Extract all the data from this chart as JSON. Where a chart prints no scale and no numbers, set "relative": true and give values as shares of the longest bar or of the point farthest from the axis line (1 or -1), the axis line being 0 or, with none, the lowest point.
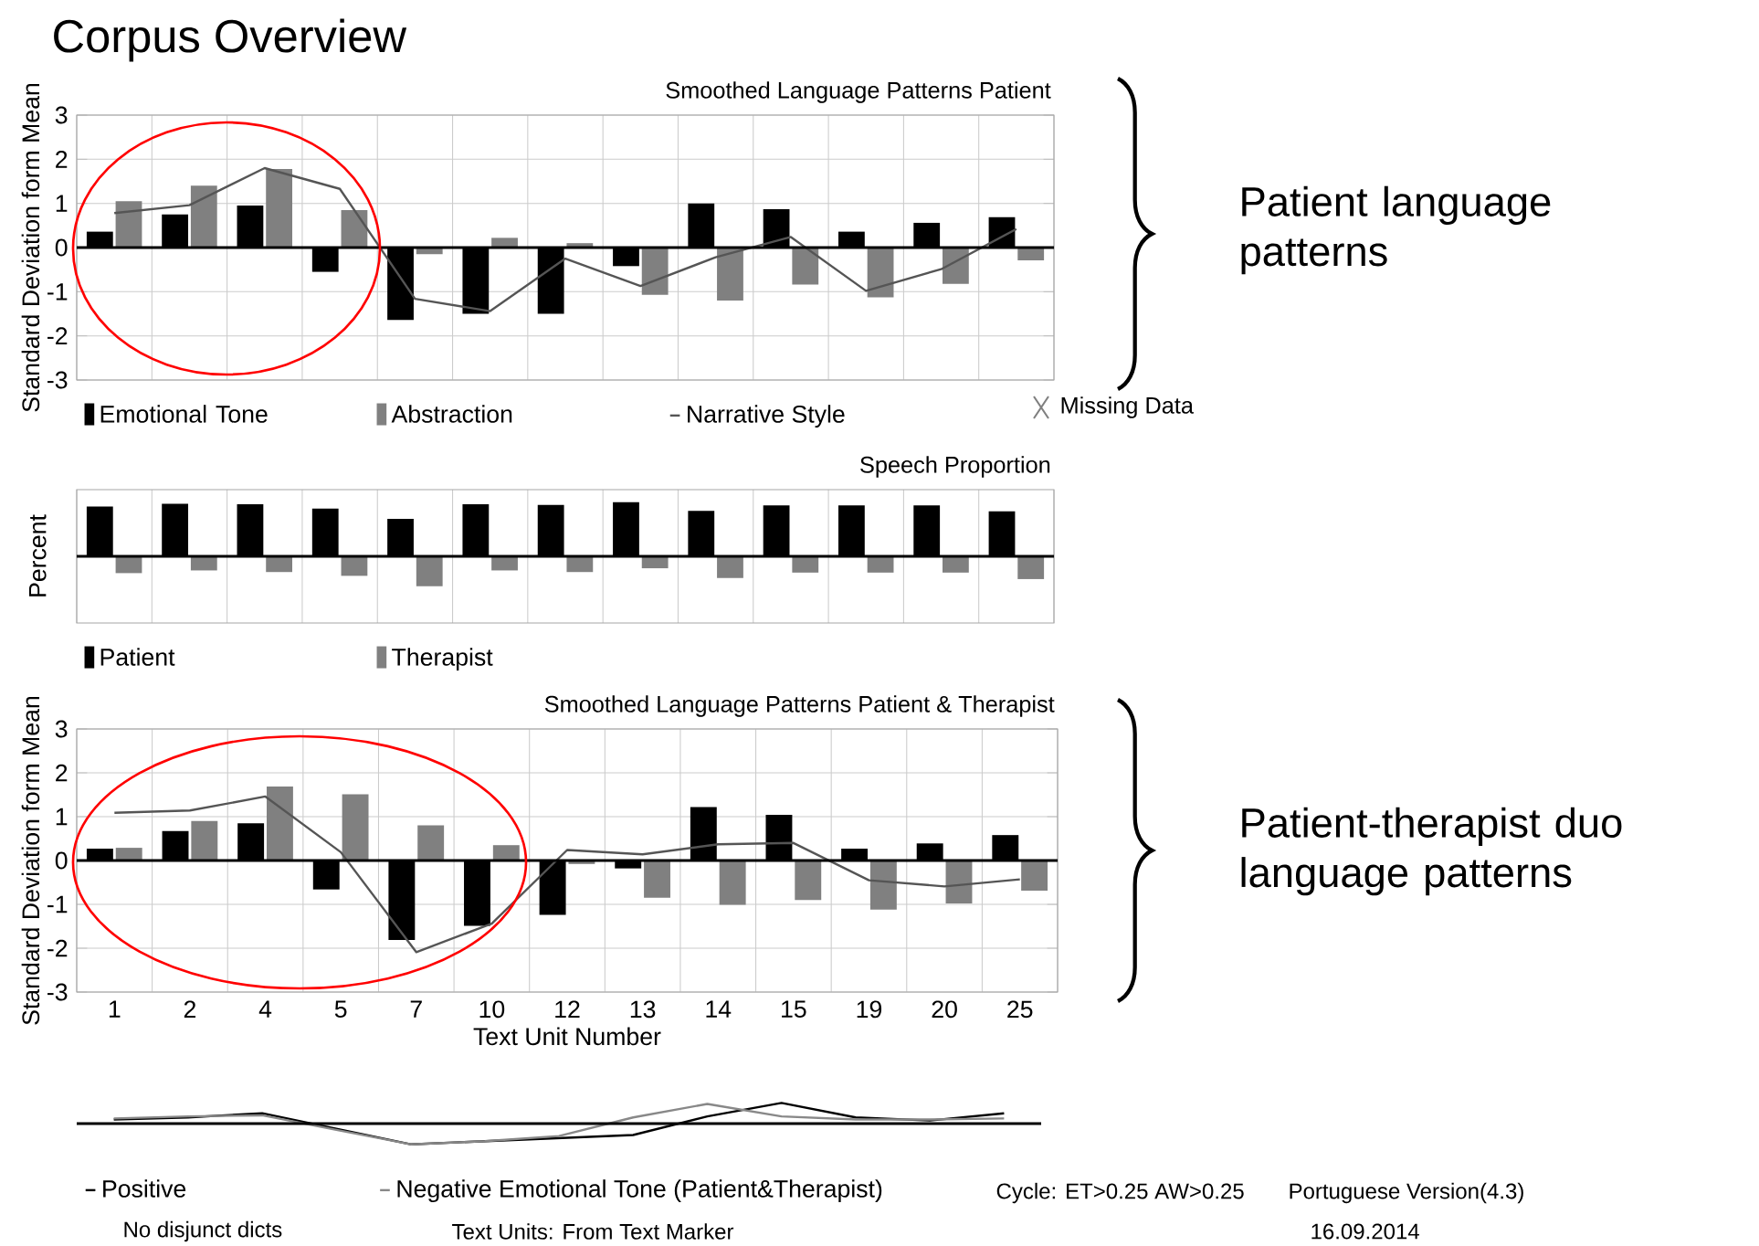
{
  "chart_data": [
    {
      "type": "bar",
      "title": "Corpus Overview",
      "subtitle": "Smoothed Language Patterns Patient",
      "ylabel": "Standard Deviation form Mean",
      "categories": [
        "1",
        "2",
        "4",
        "5",
        "7",
        "10",
        "12",
        "13",
        "14",
        "15",
        "19",
        "20",
        "25"
      ],
      "series": [
        {
          "name": "Emotional Tone",
          "color": "#000000",
          "values": [
            0.36,
            0.75,
            0.95,
            -0.55,
            -1.64,
            -1.5,
            -1.5,
            -0.42,
            1.0,
            0.87,
            0.36,
            0.56,
            0.69
          ]
        },
        {
          "name": "Abstraction",
          "color": "#808080",
          "values": [
            1.05,
            1.4,
            1.78,
            0.85,
            -0.15,
            0.22,
            0.1,
            -1.07,
            -1.2,
            -0.84,
            -1.13,
            -0.82,
            -0.29
          ]
        },
        {
          "name": "Narrative Style",
          "type": "line",
          "color": "#555555",
          "values": [
            0.78,
            0.96,
            1.8,
            1.33,
            -1.16,
            -1.44,
            -0.25,
            -0.87,
            -0.22,
            0.24,
            -0.98,
            -0.49,
            0.42
          ]
        }
      ],
      "ylim": [
        -3,
        3
      ],
      "yticks": [
        -3,
        -2,
        -1,
        0,
        1,
        2,
        3
      ],
      "grid": true,
      "legend": "bottom",
      "tick_labels": "y",
      "annotations": [
        "Missing Data",
        "Patient language patterns"
      ]
    },
    {
      "type": "bar",
      "subtitle": "Speech Proportion",
      "ylabel": "Percent",
      "relative": true,
      "categories": [
        "1",
        "2",
        "4",
        "5",
        "7",
        "10",
        "12",
        "13",
        "14",
        "15",
        "19",
        "20",
        "25"
      ],
      "series": [
        {
          "name": "Patient",
          "color": "#000000",
          "values": [
            0.92,
            0.97,
            0.96,
            0.88,
            0.69,
            0.96,
            0.95,
            1,
            0.84,
            0.94,
            0.94,
            0.94,
            0.83
          ]
        },
        {
          "name": "Therapist",
          "color": "#808080",
          "values": [
            -0.31,
            -0.26,
            -0.29,
            -0.36,
            -0.55,
            -0.26,
            -0.29,
            -0.22,
            -0.4,
            -0.3,
            -0.3,
            -0.3,
            -0.42
          ]
        }
      ],
      "grid": "x",
      "legend": "bottom",
      "tick_labels": false
    },
    {
      "type": "bar",
      "subtitle": "Smoothed Language Patterns Patient & Therapist",
      "ylabel": "Standard Deviation form Mean",
      "xlabel": "Text Unit Number",
      "categories": [
        "1",
        "2",
        "4",
        "5",
        "7",
        "10",
        "12",
        "13",
        "14",
        "15",
        "19",
        "20",
        "25"
      ],
      "series": [
        {
          "color": "#000000",
          "values": [
            0.27,
            0.67,
            0.85,
            -0.66,
            -1.81,
            -1.49,
            -1.24,
            -0.18,
            1.22,
            1.04,
            0.27,
            0.39,
            0.58
          ]
        },
        {
          "color": "#808080",
          "values": [
            0.29,
            0.9,
            1.69,
            1.51,
            0.8,
            0.35,
            -0.08,
            -0.85,
            -1.01,
            -0.9,
            -1.12,
            -0.98,
            -0.69
          ]
        },
        {
          "type": "line",
          "color": "#555555",
          "values": [
            1.09,
            1.14,
            1.46,
            0.19,
            -2.09,
            -1.44,
            0.24,
            0.14,
            0.37,
            0.4,
            -0.45,
            -0.59,
            -0.43
          ]
        }
      ],
      "ylim": [
        -3,
        3
      ],
      "yticks": [
        -3,
        -2,
        -1,
        0,
        1,
        2,
        3
      ],
      "grid": true,
      "annotations": [
        "Patient-therapist duo language patterns"
      ]
    },
    {
      "type": "line",
      "relative": true,
      "categories": [
        null,
        null,
        null,
        null,
        null,
        null,
        null,
        null,
        null,
        null,
        null,
        null,
        null
      ],
      "series": [
        {
          "name": "Positive",
          "color": "#000000",
          "values": [
            0.2,
            0.3,
            0.5,
            -0.25,
            -1,
            -0.85,
            -0.7,
            -0.55,
            0.35,
            1,
            0.3,
            0.15,
            0.5
          ]
        },
        {
          "name": "Negative Emotional Tone (Patient&Therapist)",
          "color": "#888888",
          "values": [
            0.25,
            0.35,
            0.4,
            -0.3,
            -1,
            -0.85,
            -0.6,
            0.3,
            0.95,
            0.35,
            0.2,
            0.2,
            0.25
          ]
        }
      ],
      "legend": "bottom",
      "tick_labels": false,
      "annotations": [
        "Cycle: ET>0.25 AW>0.25",
        "Portuguese Version(4.3)",
        "No disjunct dicts",
        "Text Units: From Text Marker",
        "16.09.2014"
      ]
    }
  ]
}
